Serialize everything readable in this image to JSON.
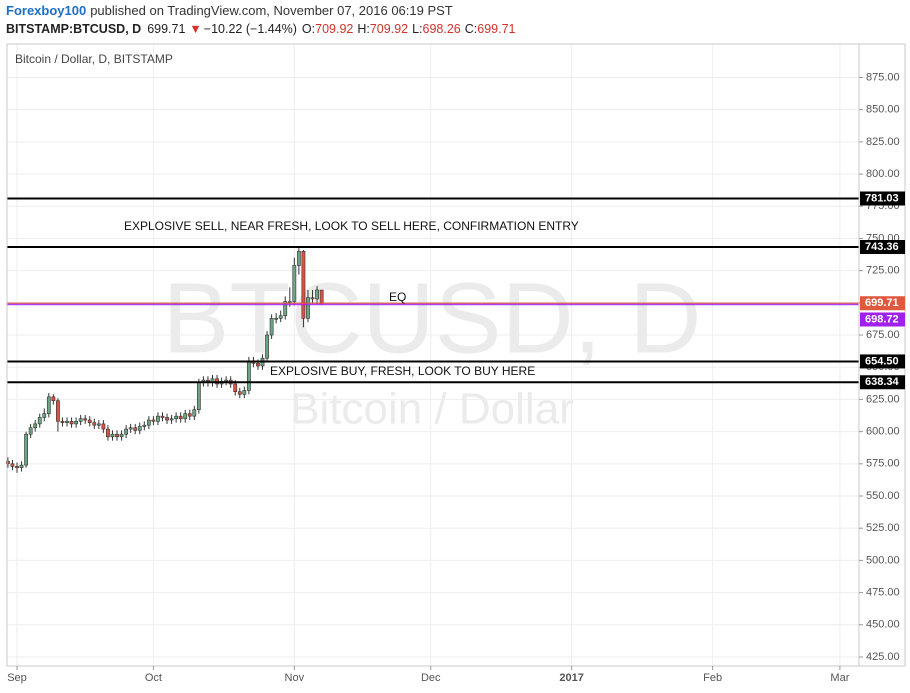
{
  "header": {
    "author": "Forexboy100",
    "published": "published on TradingView.com, November 07, 2016 06:19 PST",
    "symbol": "BITSTAMP:BTCUSD, D",
    "last": "699.71",
    "arrow": "▼",
    "change": "−10.22 (−1.44%)",
    "o_label": "O:",
    "o": "709.92",
    "h_label": "H:",
    "h": "709.92",
    "l_label": "L:",
    "l": "698.26",
    "c_label": "C:",
    "c": "699.71"
  },
  "chart_data": {
    "type": "candlestick",
    "title": "Bitcoin / Dollar, D, BITSTAMP",
    "watermark": "BTCUSD, D",
    "watermark_subtitle": "Bitcoin / Dollar",
    "up_color": "#6ba583",
    "down_color": "#d75442",
    "grid": true,
    "x": [
      -2,
      -1,
      0,
      1,
      2,
      3,
      4,
      5,
      6,
      7,
      8,
      9,
      10,
      11,
      12,
      13,
      14,
      15,
      16,
      17,
      18,
      19,
      20,
      21,
      22,
      23,
      24,
      25,
      26,
      27,
      28,
      29,
      30,
      31,
      32,
      33,
      34,
      35,
      36,
      37,
      38,
      39,
      40,
      41,
      42,
      43,
      44,
      45,
      46,
      47,
      48,
      49,
      50,
      51,
      52,
      53,
      54,
      55,
      56,
      57,
      58,
      59,
      60,
      61,
      62,
      63,
      64,
      65,
      66,
      67
    ],
    "open": [
      577,
      575,
      573,
      572,
      574,
      598,
      603,
      606,
      611,
      614,
      627,
      624,
      608,
      607,
      608,
      606,
      608,
      610,
      609,
      607,
      605,
      606,
      602,
      596,
      598,
      596,
      598,
      602,
      603,
      601,
      604,
      605,
      609,
      608,
      612,
      611,
      609,
      610,
      612,
      610,
      614,
      612,
      617,
      638,
      640,
      638,
      641,
      637,
      639,
      640,
      637,
      631,
      629,
      632,
      655,
      653,
      651,
      657,
      675,
      688,
      688,
      690,
      701,
      701,
      729,
      740,
      688,
      704,
      703,
      709.92
    ],
    "high": [
      580,
      578,
      576,
      577,
      600,
      606,
      609,
      614,
      618,
      630,
      629,
      626,
      611,
      611,
      611,
      611,
      613,
      613,
      612,
      610,
      609,
      609,
      605,
      601,
      601,
      601,
      605,
      606,
      606,
      607,
      608,
      612,
      612,
      615,
      615,
      614,
      613,
      615,
      615,
      617,
      617,
      620,
      641,
      643,
      643,
      644,
      644,
      642,
      643,
      643,
      640,
      634,
      635,
      658,
      658,
      656,
      660,
      678,
      691,
      692,
      694,
      705,
      712,
      735,
      742.5,
      741,
      710,
      710,
      713,
      709.92
    ],
    "low": [
      572,
      570,
      568,
      569,
      572,
      595,
      600,
      603,
      608,
      611,
      621,
      600,
      604,
      604,
      603,
      603,
      605,
      606,
      604,
      602,
      602,
      599,
      593,
      593,
      593,
      593,
      595,
      599,
      598,
      598,
      601,
      602,
      605,
      605,
      608,
      606,
      606,
      607,
      607,
      607,
      609,
      609,
      614,
      635,
      635,
      635,
      634,
      634,
      636,
      634,
      628,
      626,
      626,
      629,
      650,
      648,
      648,
      654,
      672,
      684,
      685,
      687,
      697,
      698,
      722,
      681,
      685,
      700,
      699,
      698.26
    ],
    "close": [
      575,
      573,
      572,
      574,
      598,
      603,
      606,
      611,
      614,
      627,
      624,
      608,
      607,
      608,
      606,
      608,
      610,
      609,
      607,
      605,
      606,
      602,
      596,
      598,
      596,
      598,
      602,
      603,
      601,
      604,
      605,
      609,
      608,
      612,
      611,
      609,
      610,
      612,
      610,
      614,
      612,
      617,
      638,
      640,
      638,
      641,
      637,
      639,
      640,
      637,
      631,
      629,
      632,
      655,
      653,
      651,
      657,
      675,
      688,
      688,
      690,
      701,
      701,
      729,
      740,
      688,
      704,
      703,
      710,
      699.71
    ],
    "xlim": [
      -2.2,
      185.2
    ],
    "ylim": [
      418,
      901
    ],
    "xticks": [
      {
        "value": 0,
        "label": "Sep"
      },
      {
        "value": 30,
        "label": "Oct"
      },
      {
        "value": 61,
        "label": "Nov"
      },
      {
        "value": 91,
        "label": "Dec"
      },
      {
        "value": 122,
        "label": "2017"
      },
      {
        "value": 153,
        "label": "Feb"
      },
      {
        "value": 181,
        "label": "Mar"
      }
    ],
    "yticks": [
      {
        "value": 425,
        "label": "425.00"
      },
      {
        "value": 450,
        "label": "450.00"
      },
      {
        "value": 475,
        "label": "475.00"
      },
      {
        "value": 500,
        "label": "500.00"
      },
      {
        "value": 525,
        "label": "525.00"
      },
      {
        "value": 550,
        "label": "550.00"
      },
      {
        "value": 575,
        "label": "575.00"
      },
      {
        "value": 600,
        "label": "600.00"
      },
      {
        "value": 625,
        "label": "625.00"
      },
      {
        "value": 650,
        "label": "650.00"
      },
      {
        "value": 675,
        "label": "675.00"
      },
      {
        "value": 700,
        "label": "700.00"
      },
      {
        "value": 725,
        "label": "725.00"
      },
      {
        "value": 750,
        "label": "750.00"
      },
      {
        "value": 775,
        "label": "775.00"
      },
      {
        "value": 800,
        "label": "800.00"
      },
      {
        "value": 825,
        "label": "825.00"
      },
      {
        "value": 850,
        "label": "850.00"
      },
      {
        "value": 875,
        "label": "875.00"
      }
    ],
    "hlines": [
      {
        "price": 781.03,
        "color": "#000000"
      },
      {
        "price": 743.36,
        "color": "#000000"
      },
      {
        "price": 699.71,
        "color": "#e0593e"
      },
      {
        "price": 698.72,
        "color": "#a020f0"
      },
      {
        "price": {
          "value": 654.5,
          "label": "654.50"
        },
        "color": "#000000"
      },
      {
        "price": 638.34,
        "color": "#000000"
      }
    ],
    "annotations": [
      "EXPLOSIVE SELL, NEAR FRESH, LOOK TO SELL HERE, CONFIRMATION ENTRY",
      "EQ",
      "EXPLOSIVE BUY, FRESH, LOOK TO BUY HERE"
    ]
  }
}
